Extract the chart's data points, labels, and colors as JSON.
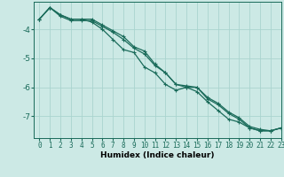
{
  "xlabel": "Humidex (Indice chaleur)",
  "background_color": "#cce9e5",
  "grid_color": "#aad4cf",
  "line_color": "#1a6b5a",
  "x": [
    0,
    1,
    2,
    3,
    4,
    5,
    6,
    7,
    8,
    9,
    10,
    11,
    12,
    13,
    14,
    15,
    16,
    17,
    18,
    19,
    20,
    21,
    22,
    23
  ],
  "line1": [
    -3.65,
    -3.25,
    -3.5,
    -3.65,
    -3.65,
    -3.65,
    -3.85,
    -4.05,
    -4.25,
    -4.6,
    -4.75,
    -5.2,
    -5.5,
    -5.9,
    -6.0,
    -6.0,
    -6.35,
    -6.55,
    -6.85,
    -7.05,
    -7.35,
    -7.45,
    -7.5,
    -7.4
  ],
  "line2": [
    -3.65,
    -3.25,
    -3.5,
    -3.65,
    -3.65,
    -3.75,
    -4.0,
    -4.35,
    -4.7,
    -4.8,
    -5.3,
    -5.5,
    -5.9,
    -6.1,
    -6.0,
    -6.15,
    -6.5,
    -6.8,
    -7.1,
    -7.2,
    -7.4,
    -7.5,
    -7.5,
    -7.4
  ],
  "line3": [
    -3.65,
    -3.25,
    -3.55,
    -3.7,
    -3.7,
    -3.7,
    -3.9,
    -4.1,
    -4.35,
    -4.65,
    -4.85,
    -5.25,
    -5.5,
    -5.9,
    -5.95,
    -6.0,
    -6.4,
    -6.6,
    -6.9,
    -7.1,
    -7.4,
    -7.5,
    -7.5,
    -7.4
  ],
  "ylim": [
    -7.75,
    -3.05
  ],
  "xlim": [
    -0.5,
    23
  ],
  "yticks": [
    -7,
    -6,
    -5,
    -4
  ],
  "xticks": [
    0,
    1,
    2,
    3,
    4,
    5,
    6,
    7,
    8,
    9,
    10,
    11,
    12,
    13,
    14,
    15,
    16,
    17,
    18,
    19,
    20,
    21,
    22,
    23
  ],
  "marker": "+",
  "markersize": 3.5,
  "linewidth": 0.9,
  "tick_fontsize": 5.5,
  "xlabel_fontsize": 6.5
}
